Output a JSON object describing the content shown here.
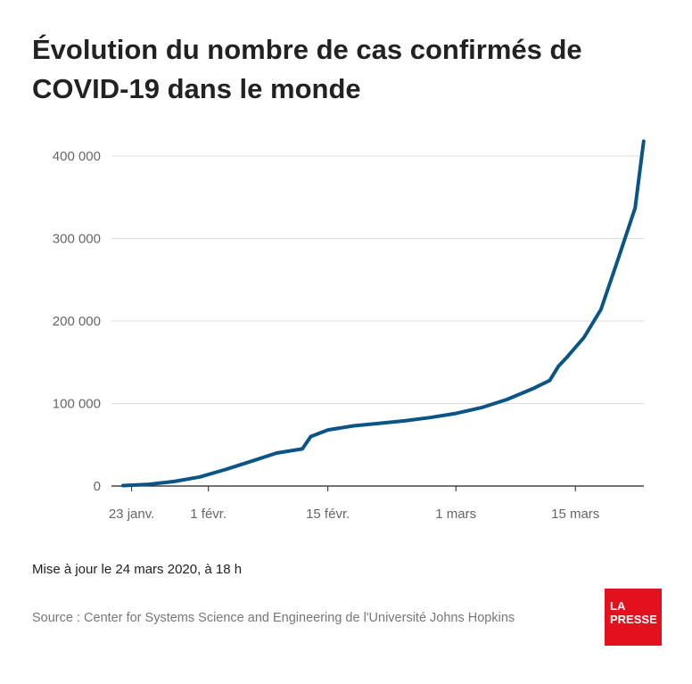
{
  "title": "Évolution du nombre de cas confirmés de COVID-19 dans le monde",
  "update_note": "Mise à jour le 24 mars 2020, à 18 h",
  "source": "Source : Center for Systems Science and Engineering de l'Université Johns Hopkins",
  "logo": {
    "line1": "LA",
    "line2": "PRESSE",
    "color": "#e3111e"
  },
  "chart_data": {
    "type": "line",
    "title": "Évolution du nombre de cas confirmés de COVID-19 dans le monde",
    "xlabel": "",
    "ylabel": "",
    "x_ticks": [
      "23 janv.",
      "1 févr.",
      "15 févr.",
      "1 mars",
      "15 mars"
    ],
    "y_ticks": [
      "0",
      "100 000",
      "200 000",
      "300 000",
      "400 000"
    ],
    "ylim": [
      0,
      420000
    ],
    "grid": "horizontal",
    "line_color": "#0a5486",
    "series": [
      {
        "x": [
          "2020-01-22",
          "2020-01-25",
          "2020-01-28",
          "2020-01-31",
          "2020-02-03",
          "2020-02-06",
          "2020-02-09",
          "2020-02-12",
          "2020-02-13",
          "2020-02-15",
          "2020-02-18",
          "2020-02-21",
          "2020-02-24",
          "2020-02-27",
          "2020-03-01",
          "2020-03-04",
          "2020-03-07",
          "2020-03-10",
          "2020-03-12",
          "2020-03-13",
          "2020-03-14",
          "2020-03-16",
          "2020-03-18",
          "2020-03-20",
          "2020-03-22",
          "2020-03-23"
        ],
        "values": [
          555,
          2000,
          5500,
          11000,
          20000,
          30000,
          40000,
          45000,
          60000,
          68000,
          73000,
          76000,
          79000,
          83000,
          88000,
          95000,
          105000,
          118000,
          128000,
          145000,
          156000,
          180000,
          214000,
          275000,
          337000,
          418000
        ]
      }
    ]
  }
}
